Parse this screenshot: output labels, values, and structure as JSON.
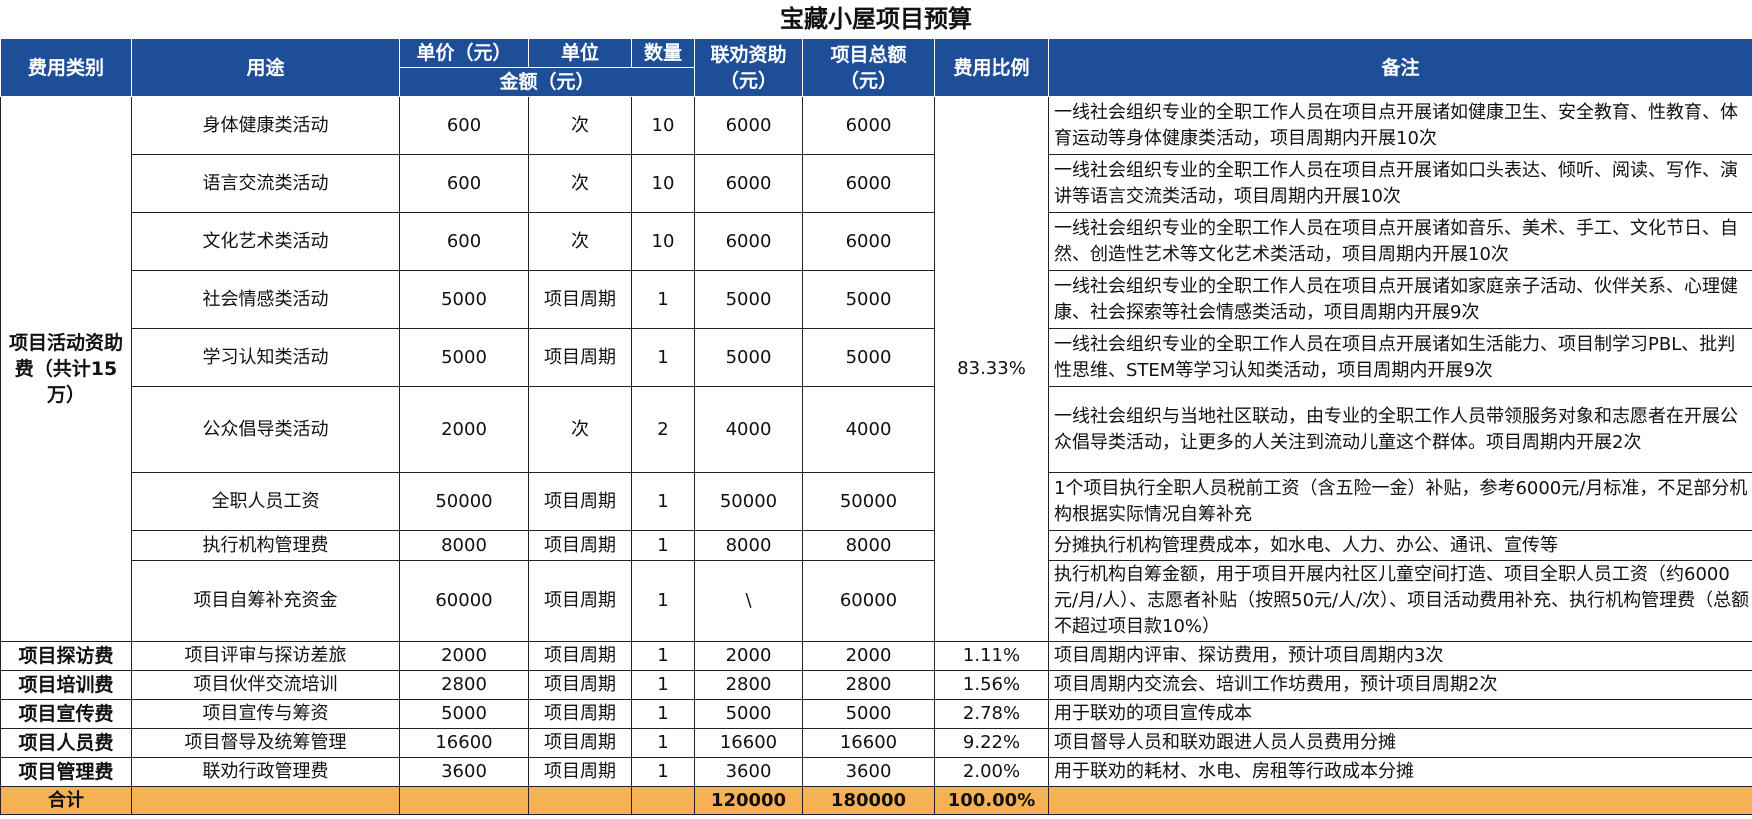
{
  "title": "宝藏小屋项目预算",
  "header": {
    "category": "费用类别",
    "purpose": "用途",
    "unit_price": "单价（元）",
    "unit": "单位",
    "quantity": "数量",
    "amount": "金额（元）",
    "lianquan_funding_l1": "联劝资助",
    "lianquan_funding_l2": "（元）",
    "project_total_l1": "项目总额",
    "project_total_l2": "（元）",
    "ratio": "费用比例",
    "notes": "备注"
  },
  "activity_group": {
    "category": "项目活动资助费（共计15万）",
    "ratio": "83.33%",
    "rows": [
      {
        "purpose": "身体健康类活动",
        "price": "600",
        "unit": "次",
        "qty": "10",
        "funding": "6000",
        "total": "6000",
        "note": "一线社会组织专业的全职工作人员在项目点开展诸如健康卫生、安全教育、性教育、体育运动等身体健康类活动，项目周期内开展10次"
      },
      {
        "purpose": "语言交流类活动",
        "price": "600",
        "unit": "次",
        "qty": "10",
        "funding": "6000",
        "total": "6000",
        "note": "一线社会组织专业的全职工作人员在项目点开展诸如口头表达、倾听、阅读、写作、演讲等语言交流类活动，项目周期内开展10次"
      },
      {
        "purpose": "文化艺术类活动",
        "price": "600",
        "unit": "次",
        "qty": "10",
        "funding": "6000",
        "total": "6000",
        "note": "一线社会组织专业的全职工作人员在项目点开展诸如音乐、美术、手工、文化节日、自然、创造性艺术等文化艺术类活动，项目周期内开展10次"
      },
      {
        "purpose": "社会情感类活动",
        "price": "5000",
        "unit": "项目周期",
        "qty": "1",
        "funding": "5000",
        "total": "5000",
        "note": "一线社会组织专业的全职工作人员在项目点开展诸如家庭亲子活动、伙伴关系、心理健康、社会探索等社会情感类活动，项目周期内开展9次"
      },
      {
        "purpose": "学习认知类活动",
        "price": "5000",
        "unit": "项目周期",
        "qty": "1",
        "funding": "5000",
        "total": "5000",
        "note": "一线社会组织专业的全职工作人员在项目点开展诸如生活能力、项目制学习PBL、批判性思维、STEM等学习认知类活动，项目周期内开展9次"
      },
      {
        "purpose": "公众倡导类活动",
        "price": "2000",
        "unit": "次",
        "qty": "2",
        "funding": "4000",
        "total": "4000",
        "note": "一线社会组织与当地社区联动，由专业的全职工作人员带领服务对象和志愿者在开展公众倡导类活动，让更多的人关注到流动儿童这个群体。项目周期内开展2次"
      },
      {
        "purpose": "全职人员工资",
        "price": "50000",
        "unit": "项目周期",
        "qty": "1",
        "funding": "50000",
        "total": "50000",
        "note": "1个项目执行全职人员税前工资（含五险一金）补贴，参考6000元/月标准，不足部分机构根据实际情况自筹补充"
      },
      {
        "purpose": "执行机构管理费",
        "price": "8000",
        "unit": "项目周期",
        "qty": "1",
        "funding": "8000",
        "total": "8000",
        "note": "分摊执行机构管理费成本，如水电、人力、办公、通讯、宣传等"
      },
      {
        "purpose": "项目自筹补充资金",
        "price": "60000",
        "unit": "项目周期",
        "qty": "1",
        "funding": "\\",
        "total": "60000",
        "note": "执行机构自筹金额，用于项目开展内社区儿童空间打造、项目全职人员工资（约6000元/月/人）、志愿者补贴（按照50元/人/次）、项目活动费用补充、执行机构管理费（总额不超过项目款10%）"
      }
    ]
  },
  "other_rows": [
    {
      "category": "项目探访费",
      "purpose": "项目评审与探访差旅",
      "price": "2000",
      "unit": "项目周期",
      "qty": "1",
      "funding": "2000",
      "total": "2000",
      "ratio": "1.11%",
      "note": "项目周期内评审、探访费用，预计项目周期内3次"
    },
    {
      "category": "项目培训费",
      "purpose": "项目伙伴交流培训",
      "price": "2800",
      "unit": "项目周期",
      "qty": "1",
      "funding": "2800",
      "total": "2800",
      "ratio": "1.56%",
      "note": "项目周期内交流会、培训工作坊费用，预计项目周期2次"
    },
    {
      "category": "项目宣传费",
      "purpose": "项目宣传与筹资",
      "price": "5000",
      "unit": "项目周期",
      "qty": "1",
      "funding": "5000",
      "total": "5000",
      "ratio": "2.78%",
      "note": "用于联劝的项目宣传成本"
    },
    {
      "category": "项目人员费",
      "purpose": "项目督导及统筹管理",
      "price": "16600",
      "unit": "项目周期",
      "qty": "1",
      "funding": "16600",
      "total": "16600",
      "ratio": "9.22%",
      "note": "项目督导人员和联劝跟进人员人员费用分摊"
    },
    {
      "category": "项目管理费",
      "purpose": "联劝行政管理费",
      "price": "3600",
      "unit": "项目周期",
      "qty": "1",
      "funding": "3600",
      "total": "3600",
      "ratio": "2.00%",
      "note": "用于联劝的耗材、水电、房租等行政成本分摊"
    }
  ],
  "total_row": {
    "label": "合计",
    "funding": "120000",
    "total": "180000",
    "ratio": "100.00%"
  }
}
